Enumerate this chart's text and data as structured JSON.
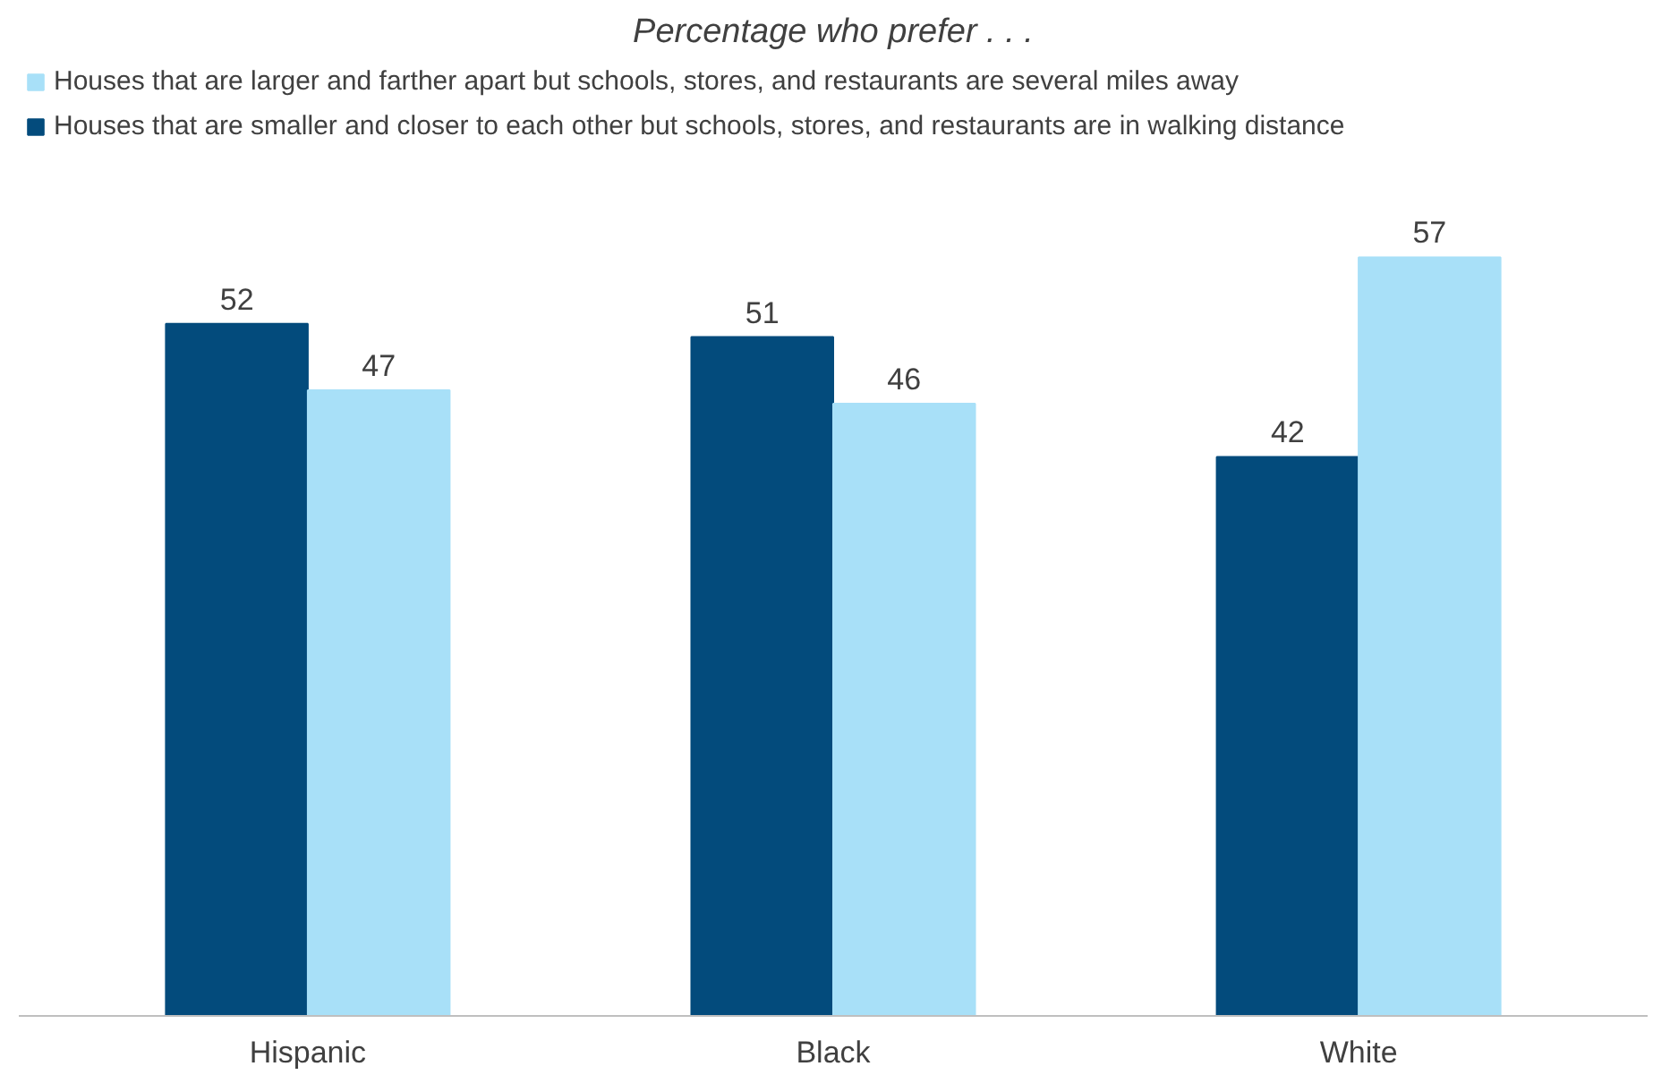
{
  "chart_data": {
    "type": "bar",
    "title": "Percentage who prefer . . .",
    "categories": [
      "Hispanic",
      "Black",
      "White"
    ],
    "series": [
      {
        "name": "Houses that are smaller and closer to each other but schools, stores, and restaurants are in walking distance",
        "color": "#034b7c",
        "values": [
          52,
          51,
          42
        ]
      },
      {
        "name": "Houses that are larger and farther apart but schools, stores, and restaurants are several miles away",
        "color": "#a8e0f8",
        "values": [
          47,
          46,
          57
        ]
      }
    ],
    "data_labels": true,
    "grid": false,
    "legend": "top",
    "tick_labels": "x"
  }
}
